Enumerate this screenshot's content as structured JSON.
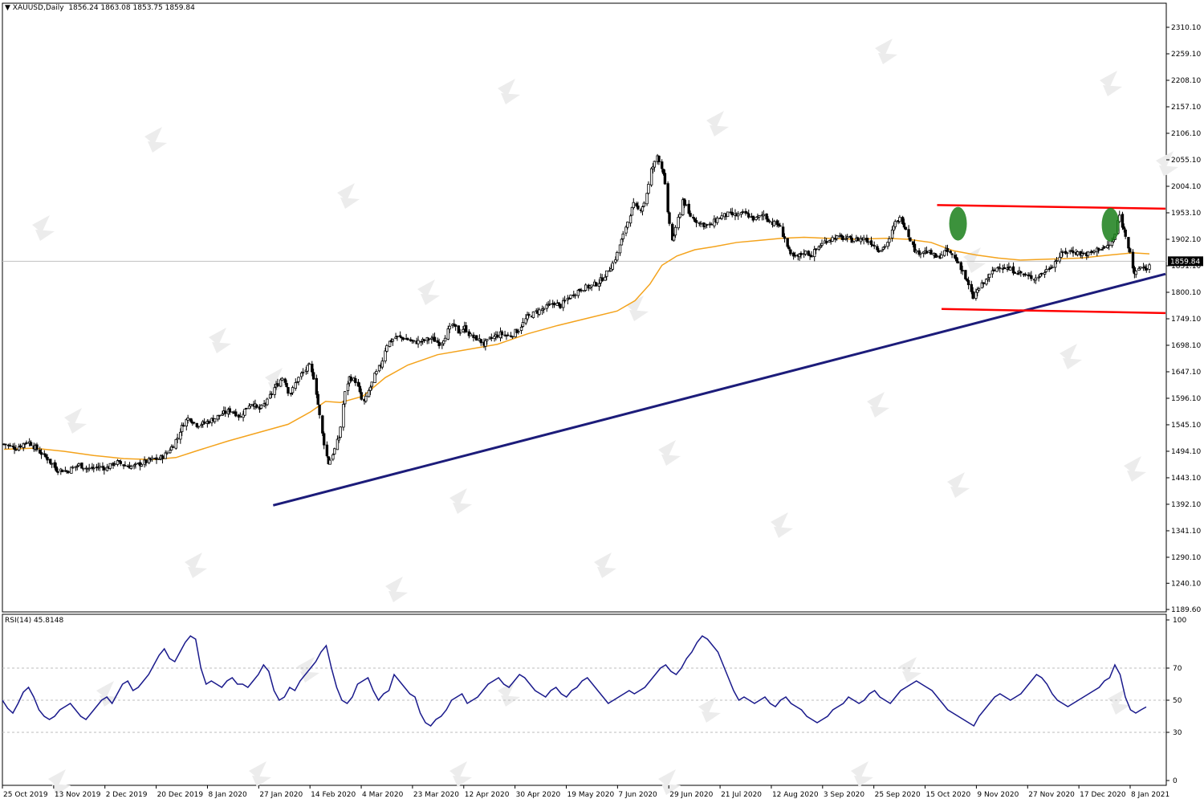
{
  "chart_data": {
    "type": "candlestick",
    "symbol": "XAUUSD",
    "timeframe": "Daily",
    "ohlc_header": {
      "open": "1856.24",
      "high": "1863.08",
      "low": "1853.75",
      "close": "1859.84"
    },
    "current_price_label": "1859.84",
    "price_axis_ticks": [
      "2310.10",
      "2259.10",
      "2208.10",
      "2157.10",
      "2106.10",
      "2055.10",
      "2004.10",
      "1953.10",
      "1902.10",
      "1851.10",
      "1800.10",
      "1749.10",
      "1698.10",
      "1647.10",
      "1596.10",
      "1545.10",
      "1494.10",
      "1443.10",
      "1392.10",
      "1341.10",
      "1290.10",
      "1240.10",
      "1189.60"
    ],
    "price_ylim": [
      1189.6,
      2310.1
    ],
    "date_labels": [
      "25 Oct 2019",
      "13 Nov 2019",
      "2 Dec 2019",
      "20 Dec 2019",
      "8 Jan 2020",
      "27 Jan 2020",
      "14 Feb 2020",
      "4 Mar 2020",
      "23 Mar 2020",
      "12 Apr 2020",
      "30 Apr 2020",
      "19 May 2020",
      "7 Jun 2020",
      "29 Jun 2020",
      "21 Jul 2020",
      "12 Aug 2020",
      "3 Sep 2020",
      "25 Sep 2020",
      "15 Oct 2020",
      "9 Nov 2020",
      "27 Nov 2020",
      "17 Dec 2020",
      "8 Jan 2021"
    ],
    "price_path": [
      [
        0,
        1508
      ],
      [
        8,
        1500
      ],
      [
        16,
        1514
      ],
      [
        22,
        1498
      ],
      [
        29,
        1480
      ],
      [
        35,
        1460
      ],
      [
        42,
        1456
      ],
      [
        50,
        1468
      ],
      [
        57,
        1460
      ],
      [
        63,
        1464
      ],
      [
        69,
        1462
      ],
      [
        75,
        1474
      ],
      [
        80,
        1468
      ],
      [
        86,
        1464
      ],
      [
        93,
        1472
      ],
      [
        99,
        1478
      ],
      [
        104,
        1480
      ],
      [
        108,
        1488
      ],
      [
        112,
        1502
      ],
      [
        116,
        1520
      ],
      [
        120,
        1548
      ],
      [
        124,
        1560
      ],
      [
        128,
        1545
      ],
      [
        134,
        1548
      ],
      [
        140,
        1556
      ],
      [
        146,
        1566
      ],
      [
        152,
        1574
      ],
      [
        158,
        1560
      ],
      [
        162,
        1578
      ],
      [
        166,
        1590
      ],
      [
        170,
        1572
      ],
      [
        176,
        1590
      ],
      [
        181,
        1616
      ],
      [
        187,
        1640
      ],
      [
        191,
        1600
      ],
      [
        194,
        1620
      ],
      [
        198,
        1640
      ],
      [
        201,
        1648
      ],
      [
        204,
        1658
      ],
      [
        208,
        1630
      ],
      [
        211,
        1562
      ],
      [
        214,
        1510
      ],
      [
        217,
        1472
      ],
      [
        220,
        1490
      ],
      [
        224,
        1520
      ],
      [
        228,
        1606
      ],
      [
        231,
        1636
      ],
      [
        236,
        1628
      ],
      [
        240,
        1582
      ],
      [
        244,
        1610
      ],
      [
        248,
        1640
      ],
      [
        252,
        1660
      ],
      [
        256,
        1700
      ],
      [
        262,
        1714
      ],
      [
        268,
        1712
      ],
      [
        274,
        1704
      ],
      [
        280,
        1706
      ],
      [
        286,
        1712
      ],
      [
        292,
        1700
      ],
      [
        296,
        1722
      ],
      [
        300,
        1738
      ],
      [
        304,
        1724
      ],
      [
        308,
        1732
      ],
      [
        312,
        1716
      ],
      [
        317,
        1710
      ],
      [
        321,
        1700
      ],
      [
        326,
        1712
      ],
      [
        332,
        1720
      ],
      [
        338,
        1716
      ],
      [
        344,
        1728
      ],
      [
        350,
        1752
      ],
      [
        356,
        1762
      ],
      [
        362,
        1770
      ],
      [
        368,
        1780
      ],
      [
        372,
        1774
      ],
      [
        377,
        1788
      ],
      [
        382,
        1800
      ],
      [
        387,
        1808
      ],
      [
        393,
        1812
      ],
      [
        398,
        1820
      ],
      [
        404,
        1840
      ],
      [
        409,
        1866
      ],
      [
        413,
        1900
      ],
      [
        417,
        1936
      ],
      [
        421,
        1968
      ],
      [
        425,
        1956
      ],
      [
        429,
        1978
      ],
      [
        433,
        2035
      ],
      [
        437,
        2063
      ],
      [
        441,
        2032
      ],
      [
        444,
        1950
      ],
      [
        447,
        1900
      ],
      [
        450,
        1930
      ],
      [
        454,
        1978
      ],
      [
        458,
        1950
      ],
      [
        462,
        1940
      ],
      [
        466,
        1932
      ],
      [
        472,
        1928
      ],
      [
        478,
        1944
      ],
      [
        484,
        1950
      ],
      [
        490,
        1948
      ],
      [
        496,
        1952
      ],
      [
        502,
        1940
      ],
      [
        508,
        1950
      ],
      [
        513,
        1934
      ],
      [
        518,
        1930
      ],
      [
        522,
        1905
      ],
      [
        526,
        1870
      ],
      [
        530,
        1866
      ],
      [
        535,
        1878
      ],
      [
        540,
        1872
      ],
      [
        545,
        1888
      ],
      [
        550,
        1900
      ],
      [
        556,
        1906
      ],
      [
        562,
        1904
      ],
      [
        568,
        1900
      ],
      [
        574,
        1904
      ],
      [
        580,
        1896
      ],
      [
        586,
        1880
      ],
      [
        592,
        1900
      ],
      [
        596,
        1934
      ],
      [
        600,
        1944
      ],
      [
        605,
        1910
      ],
      [
        610,
        1876
      ],
      [
        614,
        1880
      ],
      [
        619,
        1876
      ],
      [
        624,
        1866
      ],
      [
        630,
        1880
      ],
      [
        635,
        1870
      ],
      [
        640,
        1848
      ],
      [
        644,
        1820
      ],
      [
        648,
        1790
      ],
      [
        652,
        1808
      ],
      [
        656,
        1820
      ],
      [
        660,
        1836
      ],
      [
        666,
        1852
      ],
      [
        672,
        1844
      ],
      [
        678,
        1840
      ],
      [
        684,
        1830
      ],
      [
        690,
        1828
      ],
      [
        696,
        1840
      ],
      [
        702,
        1856
      ],
      [
        708,
        1876
      ],
      [
        714,
        1880
      ],
      [
        720,
        1874
      ],
      [
        726,
        1874
      ],
      [
        732,
        1884
      ],
      [
        738,
        1888
      ],
      [
        742,
        1900
      ],
      [
        746,
        1948
      ],
      [
        750,
        1910
      ],
      [
        753,
        1880
      ],
      [
        756,
        1832
      ],
      [
        760,
        1850
      ],
      [
        764,
        1846
      ],
      [
        766,
        1852
      ]
    ],
    "moving_average": {
      "color": "#f4a31c",
      "path": [
        [
          0,
          1498
        ],
        [
          20,
          1500
        ],
        [
          40,
          1494
        ],
        [
          60,
          1486
        ],
        [
          80,
          1480
        ],
        [
          100,
          1478
        ],
        [
          115,
          1482
        ],
        [
          130,
          1496
        ],
        [
          150,
          1514
        ],
        [
          170,
          1530
        ],
        [
          190,
          1546
        ],
        [
          205,
          1570
        ],
        [
          215,
          1590
        ],
        [
          225,
          1588
        ],
        [
          240,
          1600
        ],
        [
          255,
          1636
        ],
        [
          270,
          1660
        ],
        [
          290,
          1680
        ],
        [
          310,
          1690
        ],
        [
          330,
          1700
        ],
        [
          350,
          1720
        ],
        [
          370,
          1736
        ],
        [
          390,
          1750
        ],
        [
          410,
          1764
        ],
        [
          422,
          1784
        ],
        [
          432,
          1816
        ],
        [
          440,
          1852
        ],
        [
          450,
          1870
        ],
        [
          462,
          1882
        ],
        [
          475,
          1888
        ],
        [
          490,
          1896
        ],
        [
          505,
          1900
        ],
        [
          520,
          1904
        ],
        [
          535,
          1906
        ],
        [
          550,
          1904
        ],
        [
          570,
          1902
        ],
        [
          590,
          1904
        ],
        [
          605,
          1902
        ],
        [
          620,
          1896
        ],
        [
          635,
          1880
        ],
        [
          650,
          1872
        ],
        [
          665,
          1866
        ],
        [
          680,
          1862
        ],
        [
          700,
          1864
        ],
        [
          720,
          1866
        ],
        [
          740,
          1872
        ],
        [
          755,
          1876
        ],
        [
          766,
          1874
        ]
      ]
    },
    "trendlines": [
      {
        "name": "support",
        "color": "#1c1c7a",
        "from": [
          180,
          1390
        ],
        "to": [
          766,
          1823
        ]
      },
      {
        "name": "channel-top",
        "color": "#ff0000",
        "from": [
          624,
          1968
        ],
        "to": [
          766,
          1961
        ]
      },
      {
        "name": "channel-bottom",
        "color": "#ff0000",
        "from": [
          627,
          1768
        ],
        "to": [
          766,
          1760
        ]
      }
    ],
    "highlights": [
      {
        "color": "#1a7f1a",
        "center": [
          638,
          1932
        ]
      },
      {
        "color": "#1a7f1a",
        "center": [
          740,
          1930
        ]
      }
    ],
    "rsi": {
      "label": "RSI(14) 45.8148",
      "ylim": [
        0,
        100
      ],
      "ticks": [
        "100",
        "70",
        "50",
        "30",
        "0"
      ],
      "levels": [
        70,
        50,
        30
      ],
      "color": "#1a1a8c",
      "values": [
        50,
        45,
        42,
        48,
        55,
        58,
        52,
        44,
        40,
        38,
        40,
        44,
        46,
        48,
        44,
        40,
        38,
        42,
        46,
        50,
        52,
        48,
        54,
        60,
        62,
        56,
        58,
        62,
        66,
        72,
        78,
        82,
        76,
        74,
        80,
        86,
        90,
        88,
        70,
        60,
        62,
        60,
        58,
        62,
        64,
        60,
        60,
        58,
        62,
        66,
        72,
        68,
        56,
        50,
        52,
        58,
        56,
        62,
        66,
        70,
        74,
        80,
        84,
        70,
        58,
        50,
        48,
        52,
        60,
        62,
        64,
        56,
        50,
        54,
        56,
        66,
        62,
        58,
        54,
        52,
        42,
        36,
        34,
        38,
        40,
        44,
        50,
        52,
        54,
        48,
        50,
        52,
        56,
        60,
        62,
        64,
        60,
        58,
        62,
        66,
        64,
        60,
        56,
        54,
        52,
        56,
        58,
        54,
        52,
        56,
        58,
        62,
        64,
        60,
        56,
        52,
        48,
        50,
        52,
        54,
        56,
        54,
        56,
        58,
        62,
        66,
        70,
        72,
        68,
        66,
        70,
        76,
        80,
        86,
        90,
        88,
        84,
        80,
        72,
        64,
        56,
        50,
        52,
        50,
        48,
        50,
        52,
        48,
        46,
        50,
        52,
        48,
        46,
        44,
        40,
        38,
        36,
        38,
        40,
        44,
        46,
        48,
        52,
        50,
        48,
        50,
        54,
        56,
        52,
        50,
        48,
        52,
        56,
        58,
        60,
        62,
        60,
        58,
        56,
        52,
        48,
        44,
        42,
        40,
        38,
        36,
        34,
        40,
        44,
        48,
        52,
        54,
        52,
        50,
        52,
        54,
        58,
        62,
        66,
        64,
        60,
        54,
        50,
        48,
        46,
        48,
        50,
        52,
        54,
        56,
        58,
        62,
        64,
        72,
        66,
        52,
        44,
        42,
        44,
        45.8
      ]
    }
  }
}
